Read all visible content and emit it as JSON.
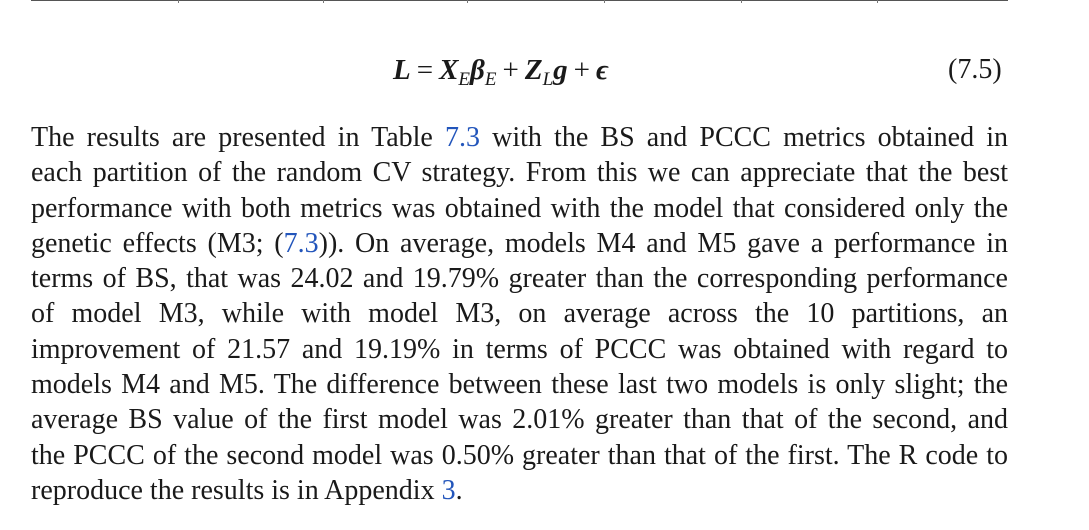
{
  "equation": {
    "lhs": "L",
    "equals": "=",
    "t1_main": "X",
    "t1_sub": "E",
    "t2_main": "β",
    "t2_sub": "E",
    "plus1": "+",
    "t3_main": "Z",
    "t3_sub": "L",
    "t4": "g",
    "plus2": "+",
    "t5": "ϵ",
    "number": "(7.5)"
  },
  "paragraph": {
    "line1_a": "The results are presented in Table ",
    "line1_ref": "7.3",
    "line1_b": " with the BS and PCCC metrics obtained in",
    "line2": "each partition of the random CV strategy. From this we can appreciate that the best",
    "line3": "performance with both metrics was obtained with the model that considered only the",
    "line4_a": "genetic effects (M3; (",
    "line4_ref": "7.3",
    "line4_b": ")). On average, models M4 and M5 gave a performance in",
    "line5": "terms of BS, that was 24.02 and 19.79% greater than the corresponding performance",
    "line6": "of model M3, while with model M3, on average across the 10 partitions, an",
    "line7": "improvement of 21.57 and 19.19% in terms of PCCC was obtained with regard to",
    "line8": "models M4 and M5. The difference between these last two models is only slight; the",
    "line9": "average BS value of the first model was 2.01% greater than that of the second, and",
    "line10": "the PCCC of the second model was 0.50% greater than that of the first. The R code to",
    "line11_a": "reproduce the results is in Appendix ",
    "line11_ref": "3",
    "line11_b": "."
  }
}
